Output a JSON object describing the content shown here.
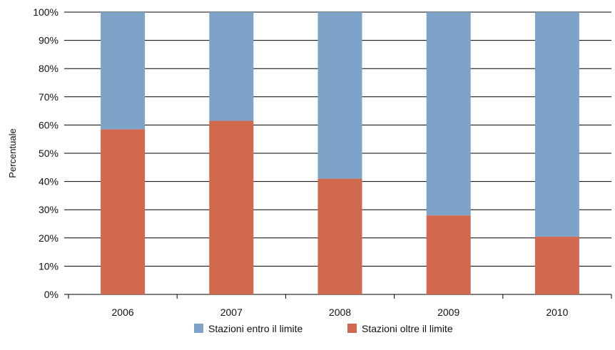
{
  "chart_data": {
    "type": "bar",
    "stacked": true,
    "categories": [
      "2006",
      "2007",
      "2008",
      "2009",
      "2010"
    ],
    "series": [
      {
        "name": "Stazioni oltre il limite",
        "values": [
          58.5,
          61.5,
          41,
          28,
          20.5
        ],
        "color": "#d0694e"
      },
      {
        "name": "Stazioni entro il limite",
        "values": [
          41.5,
          38.5,
          59,
          72,
          79.5
        ],
        "color": "#7ea3c8"
      }
    ],
    "xlabel": "",
    "ylabel": "Percentuale",
    "ylim": [
      0,
      100
    ],
    "yticks": [
      "0%",
      "10%",
      "20%",
      "30%",
      "40%",
      "50%",
      "60%",
      "70%",
      "80%",
      "90%",
      "100%"
    ],
    "grid": true,
    "legend": {
      "position": "bottom",
      "entries": [
        "Stazioni entro il limite",
        "Stazioni oltre il limite"
      ]
    }
  }
}
